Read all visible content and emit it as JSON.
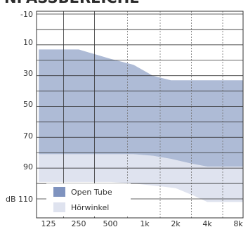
{
  "chart_data": {
    "type": "area",
    "title": "NPASSBEREICHE",
    "x_ticks": [
      "125",
      "250",
      "500",
      "1k",
      "2k",
      "4k",
      "8k"
    ],
    "y_ticks": [
      "-10",
      "10",
      "30",
      "50",
      "70",
      "90",
      "dB 110"
    ],
    "ylim": [
      -10,
      120
    ],
    "y_inverted": true,
    "grid": true,
    "legend_position": "bottom-left",
    "series": [
      {
        "name": "Open Tube",
        "color": "#aebbd6",
        "swatch_color": "#7f93bf",
        "top": [
          [
            100,
            13
          ],
          [
            250,
            13
          ],
          [
            500,
            19
          ],
          [
            800,
            23
          ],
          [
            1200,
            30
          ],
          [
            1800,
            33
          ],
          [
            3000,
            33
          ],
          [
            5000,
            33
          ],
          [
            10000,
            33
          ]
        ],
        "bottom": [
          [
            100,
            81
          ],
          [
            300,
            81
          ],
          [
            500,
            81
          ],
          [
            800,
            81
          ],
          [
            1200,
            82
          ],
          [
            1800,
            84
          ],
          [
            2800,
            87
          ],
          [
            4000,
            89
          ],
          [
            10000,
            89
          ]
        ]
      },
      {
        "name": "Hörwinkel",
        "color": "#dfe3ef",
        "swatch_color": "#dfe3ef",
        "top": [
          [
            100,
            81
          ],
          [
            300,
            81
          ],
          [
            500,
            81
          ],
          [
            800,
            81
          ],
          [
            1200,
            82
          ],
          [
            1800,
            84
          ],
          [
            2800,
            87
          ],
          [
            4000,
            89
          ],
          [
            10000,
            89
          ]
        ],
        "bottom": [
          [
            100,
            120
          ],
          [
            100,
            120
          ]
        ],
        "bottom_curve": [
          [
            100,
            99
          ],
          [
            500,
            99
          ],
          [
            800,
            100
          ],
          [
            1500,
            102
          ],
          [
            2000,
            103
          ],
          [
            3000,
            108
          ],
          [
            4000,
            112
          ],
          [
            10000,
            112
          ]
        ]
      }
    ]
  }
}
